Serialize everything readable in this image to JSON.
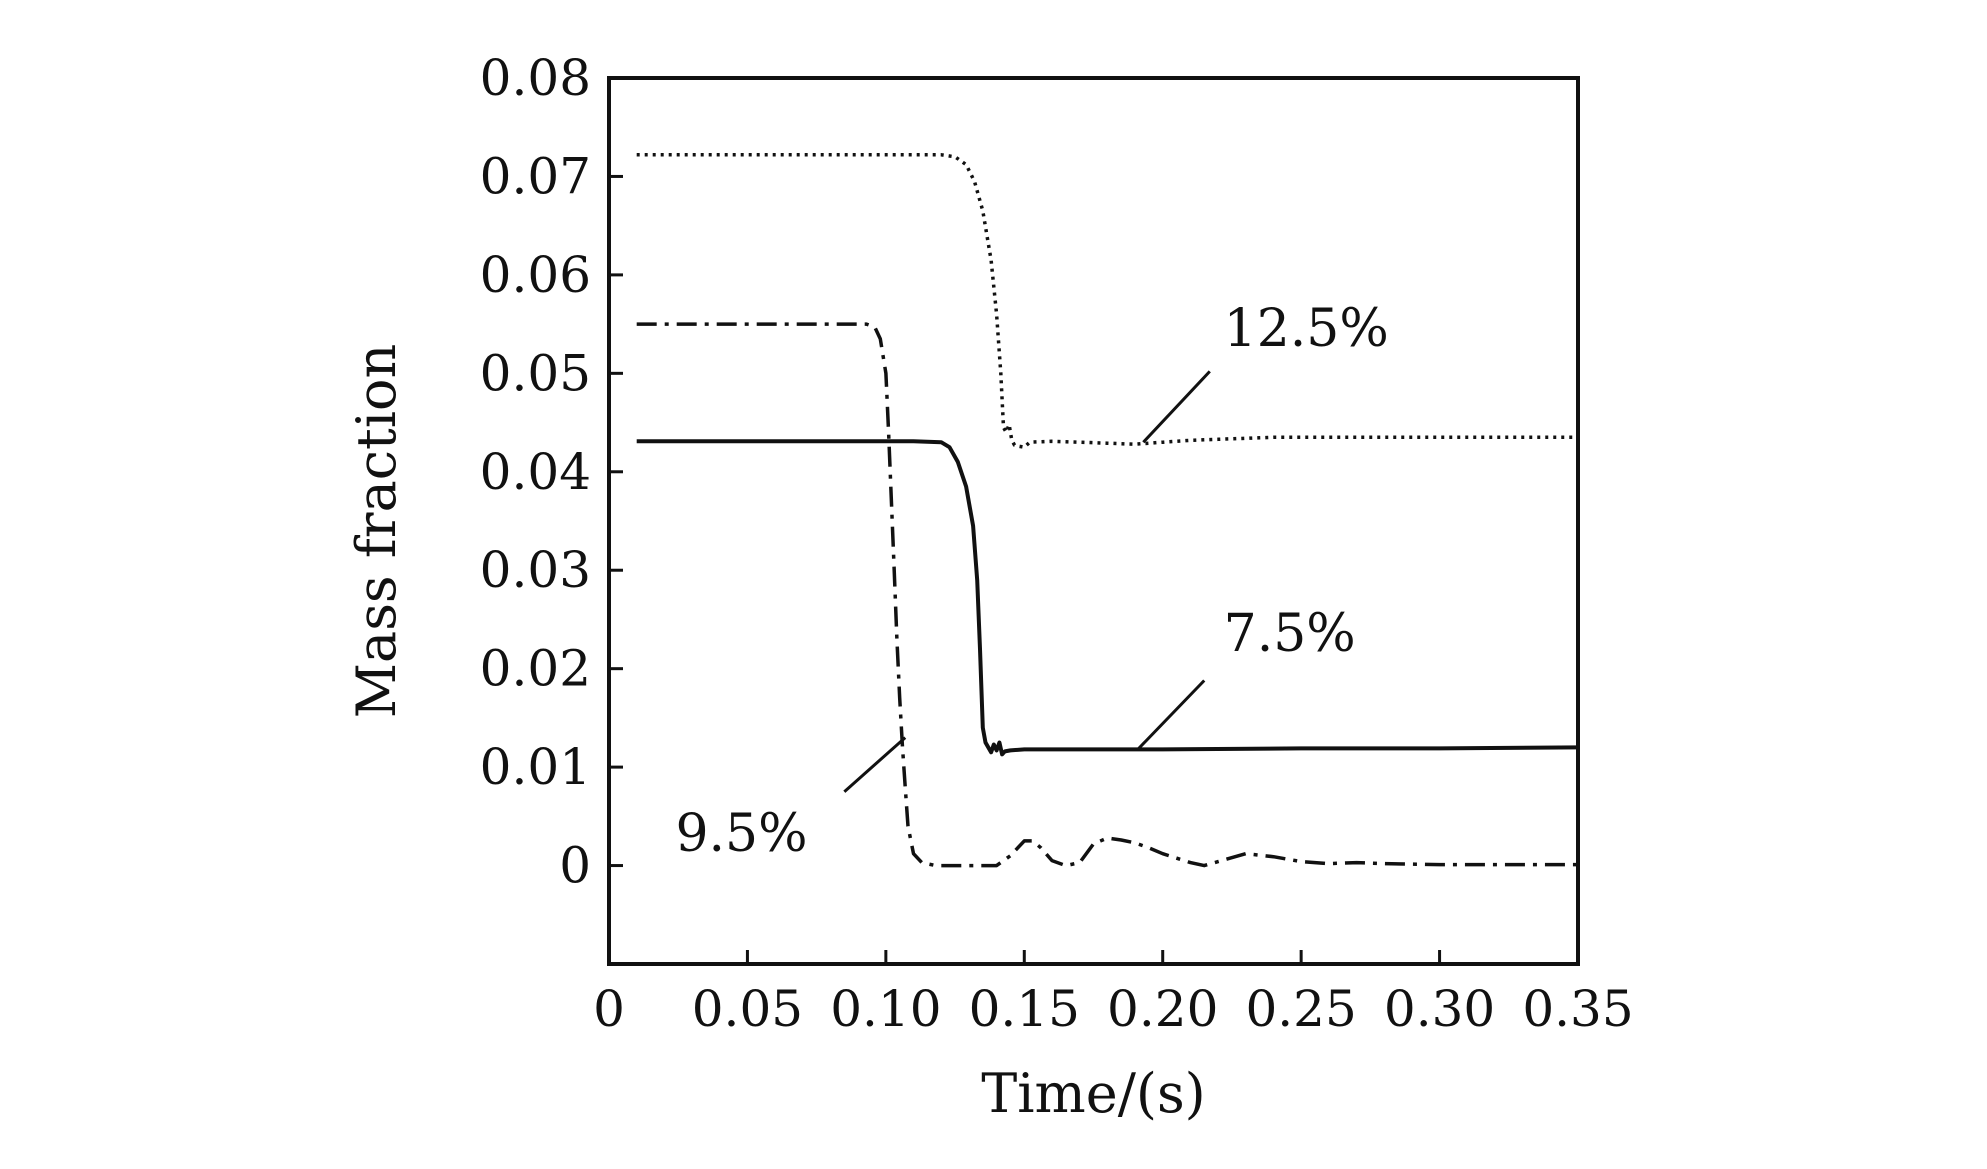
{
  "chart_data": {
    "type": "line",
    "title": "",
    "xlabel": "Time/(s)",
    "ylabel": "Mass fraction",
    "xlim": [
      0,
      0.35
    ],
    "ylim": [
      -0.01,
      0.08
    ],
    "grid": false,
    "legend": "none",
    "x_ticks": [
      {
        "value": 0,
        "label": "0"
      },
      {
        "value": 0.05,
        "label": "0.05"
      },
      {
        "value": 0.1,
        "label": "0.10"
      },
      {
        "value": 0.15,
        "label": "0.15"
      },
      {
        "value": 0.2,
        "label": "0.20"
      },
      {
        "value": 0.25,
        "label": "0.25"
      },
      {
        "value": 0.3,
        "label": "0.30"
      },
      {
        "value": 0.35,
        "label": "0.35"
      }
    ],
    "y_ticks": [
      {
        "value": 0,
        "label": "0"
      },
      {
        "value": 0.01,
        "label": "0.01"
      },
      {
        "value": 0.02,
        "label": "0.02"
      },
      {
        "value": 0.03,
        "label": "0.03"
      },
      {
        "value": 0.04,
        "label": "0.04"
      },
      {
        "value": 0.05,
        "label": "0.05"
      },
      {
        "value": 0.06,
        "label": "0.06"
      },
      {
        "value": 0.07,
        "label": "0.07"
      },
      {
        "value": 0.08,
        "label": "0.08"
      }
    ],
    "series": [
      {
        "key": "s12",
        "style": "dotted",
        "color": "#111111",
        "points": [
          [
            0.01,
            0.0722
          ],
          [
            0.05,
            0.0722
          ],
          [
            0.1,
            0.0722
          ],
          [
            0.12,
            0.0722
          ],
          [
            0.125,
            0.072
          ],
          [
            0.129,
            0.0712
          ],
          [
            0.132,
            0.0695
          ],
          [
            0.135,
            0.0665
          ],
          [
            0.138,
            0.0615
          ],
          [
            0.14,
            0.056
          ],
          [
            0.1415,
            0.05
          ],
          [
            0.1425,
            0.0445
          ],
          [
            0.1435,
            0.044
          ],
          [
            0.1445,
            0.0448
          ],
          [
            0.1455,
            0.0432
          ],
          [
            0.1465,
            0.0427
          ],
          [
            0.148,
            0.0426
          ],
          [
            0.15,
            0.0425
          ],
          [
            0.152,
            0.043
          ],
          [
            0.16,
            0.0431
          ],
          [
            0.17,
            0.043
          ],
          [
            0.18,
            0.0429
          ],
          [
            0.19,
            0.0428
          ],
          [
            0.2,
            0.043
          ],
          [
            0.21,
            0.0432
          ],
          [
            0.22,
            0.0433
          ],
          [
            0.24,
            0.0435
          ],
          [
            0.26,
            0.0435
          ],
          [
            0.3,
            0.0435
          ],
          [
            0.35,
            0.0435
          ]
        ]
      },
      {
        "key": "s95",
        "style": "dashdot",
        "color": "#111111",
        "points": [
          [
            0.01,
            0.055
          ],
          [
            0.05,
            0.055
          ],
          [
            0.093,
            0.055
          ],
          [
            0.096,
            0.0547
          ],
          [
            0.098,
            0.0535
          ],
          [
            0.1,
            0.05
          ],
          [
            0.101,
            0.044
          ],
          [
            0.102,
            0.037
          ],
          [
            0.103,
            0.03
          ],
          [
            0.104,
            0.023
          ],
          [
            0.105,
            0.017
          ],
          [
            0.106,
            0.012
          ],
          [
            0.107,
            0.008
          ],
          [
            0.108,
            0.004
          ],
          [
            0.11,
            0.0012
          ],
          [
            0.113,
            0.0003
          ],
          [
            0.118,
            0.0
          ],
          [
            0.13,
            0.0
          ],
          [
            0.14,
            0.0
          ],
          [
            0.145,
            0.001
          ],
          [
            0.15,
            0.0025
          ],
          [
            0.153,
            0.0025
          ],
          [
            0.156,
            0.0018
          ],
          [
            0.16,
            0.0005
          ],
          [
            0.165,
            0.0
          ],
          [
            0.17,
            0.0003
          ],
          [
            0.175,
            0.0022
          ],
          [
            0.18,
            0.0028
          ],
          [
            0.185,
            0.0026
          ],
          [
            0.19,
            0.0023
          ],
          [
            0.195,
            0.0018
          ],
          [
            0.2,
            0.0012
          ],
          [
            0.21,
            0.0003
          ],
          [
            0.215,
            0.0
          ],
          [
            0.22,
            0.0004
          ],
          [
            0.23,
            0.0012
          ],
          [
            0.24,
            0.0009
          ],
          [
            0.25,
            0.0004
          ],
          [
            0.26,
            0.0002
          ],
          [
            0.27,
            0.0003
          ],
          [
            0.28,
            0.0002
          ],
          [
            0.3,
            0.0001
          ],
          [
            0.32,
            0.0001
          ],
          [
            0.35,
            0.0001
          ]
        ]
      },
      {
        "key": "s75",
        "style": "solid",
        "color": "#111111",
        "points": [
          [
            0.01,
            0.0431
          ],
          [
            0.05,
            0.0431
          ],
          [
            0.11,
            0.0431
          ],
          [
            0.12,
            0.043
          ],
          [
            0.123,
            0.0425
          ],
          [
            0.126,
            0.041
          ],
          [
            0.129,
            0.0385
          ],
          [
            0.1315,
            0.0345
          ],
          [
            0.133,
            0.029
          ],
          [
            0.134,
            0.022
          ],
          [
            0.1345,
            0.018
          ],
          [
            0.135,
            0.014
          ],
          [
            0.136,
            0.0125
          ],
          [
            0.137,
            0.012
          ],
          [
            0.138,
            0.0115
          ],
          [
            0.139,
            0.0123
          ],
          [
            0.14,
            0.0117
          ],
          [
            0.141,
            0.0125
          ],
          [
            0.142,
            0.0113
          ],
          [
            0.143,
            0.0116
          ],
          [
            0.145,
            0.0117
          ],
          [
            0.15,
            0.0118
          ],
          [
            0.17,
            0.0118
          ],
          [
            0.2,
            0.0118
          ],
          [
            0.25,
            0.0119
          ],
          [
            0.3,
            0.0119
          ],
          [
            0.35,
            0.012
          ]
        ]
      }
    ],
    "annotations": [
      {
        "key": "a12",
        "text": "12.5%",
        "line_from": [
          0.193,
          0.043
        ],
        "line_to": [
          0.217,
          0.0502
        ],
        "text_at": [
          0.222,
          0.0528
        ]
      },
      {
        "key": "a75",
        "text": "7.5%",
        "line_from": [
          0.191,
          0.0118
        ],
        "line_to": [
          0.215,
          0.0188
        ],
        "text_at": [
          0.222,
          0.0218
        ]
      },
      {
        "key": "a95",
        "text": "9.5%",
        "line_from": [
          0.107,
          0.013
        ],
        "line_to": [
          0.085,
          0.0075
        ],
        "text_at": [
          0.024,
          0.0015
        ]
      }
    ]
  }
}
